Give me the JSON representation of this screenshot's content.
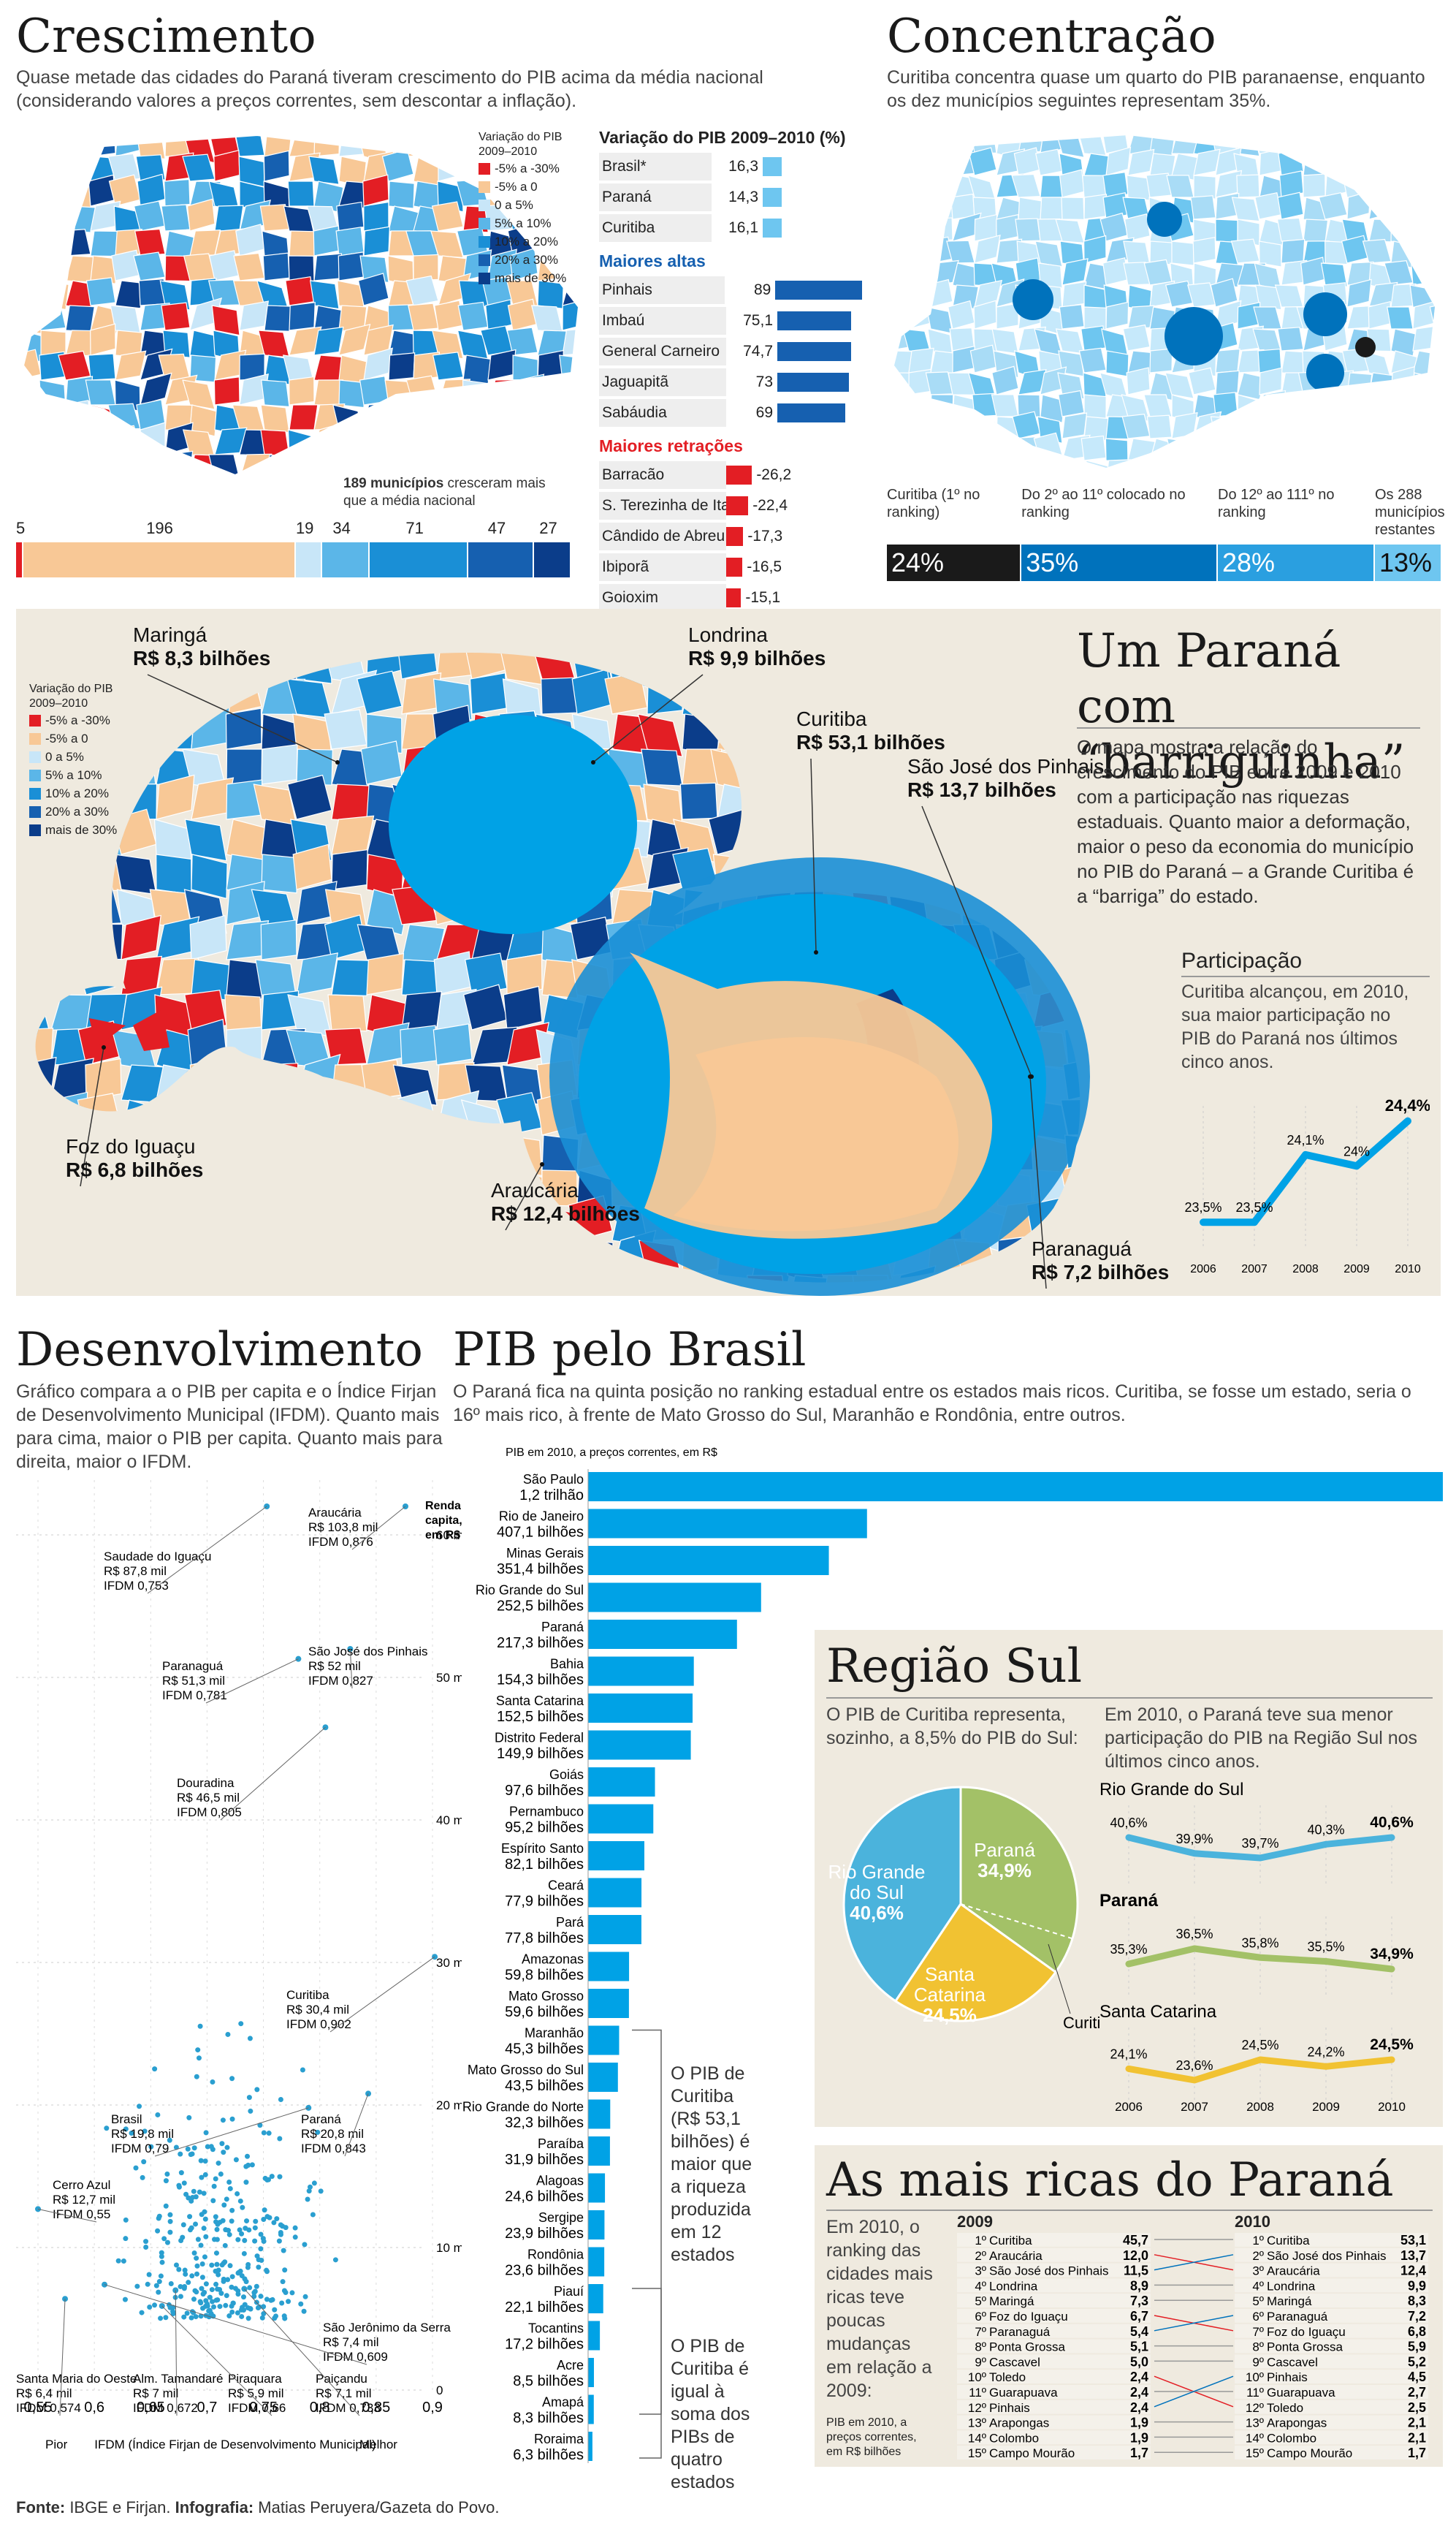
{
  "colors": {
    "neg_high": "#e31e24",
    "neg_low": "#f8c896",
    "pos_0_5": "#c8e6f8",
    "pos_5_10": "#5bb6e8",
    "pos_10_20": "#1a8fd6",
    "pos_20_30": "#1660b0",
    "pos_30": "#0b3d8a",
    "dark": "#1a1a1a",
    "mid_blue": "#0072bc",
    "light_blue": "#6ec6f0",
    "pale": "#c6e9fb",
    "beige": "#efeadf",
    "sul_rs": "#4bb3dc",
    "sul_pr": "#a3c167",
    "sul_sc": "#f1c232"
  },
  "crescimento": {
    "title": "Crescimento",
    "lead": "Quase metade das cidades do Paraná tiveram crescimento do PIB  acima da média nacional (considerando valores a preços correntes, sem descontar a inflação).",
    "legend_title": "Variação do PIB 2009–2010",
    "legend": [
      "-5% a -30%",
      "-5% a 0",
      "0 a 5%",
      "5% a 10%",
      "10% a 20%",
      "20% a 30%",
      "mais de 30%"
    ],
    "var_title": "Variação do PIB 2009–2010 (%)",
    "var_rows": [
      {
        "label": "Brasil*",
        "value": "16,3"
      },
      {
        "label": "Paraná",
        "value": "14,3"
      },
      {
        "label": "Curitiba",
        "value": "16,1"
      }
    ],
    "altas_title": "Maiores altas",
    "altas": [
      {
        "label": "Pinhais",
        "value": "89",
        "num": 89
      },
      {
        "label": "Imbaú",
        "value": "75,1",
        "num": 75.1
      },
      {
        "label": "General Carneiro",
        "value": "74,7",
        "num": 74.7
      },
      {
        "label": "Jaguapitã",
        "value": "73",
        "num": 73
      },
      {
        "label": "Sabáudia",
        "value": "69",
        "num": 69
      }
    ],
    "retr_title": "Maiores retrações",
    "retr": [
      {
        "label": "Barracão",
        "value": "-26,2",
        "num": 26.2
      },
      {
        "label": "S. Terezinha de Itaipu",
        "value": "-22,4",
        "num": 22.4
      },
      {
        "label": "Cândido de Abreu",
        "value": "-17,3",
        "num": 17.3
      },
      {
        "label": "Ibiporã",
        "value": "-16,5",
        "num": 16.5
      },
      {
        "label": "Goioxim",
        "value": "-15,1",
        "num": 15.1
      }
    ],
    "note_bold": "189 municípios",
    "note_rest": " cresceram mais que a média nacional",
    "counts": [
      {
        "n": "5",
        "v": 5
      },
      {
        "n": "196",
        "v": 196
      },
      {
        "n": "19",
        "v": 19
      },
      {
        "n": "34",
        "v": 34
      },
      {
        "n": "71",
        "v": 71
      },
      {
        "n": "47",
        "v": 47
      },
      {
        "n": "27",
        "v": 27
      }
    ]
  },
  "concentracao": {
    "title": "Concentração",
    "lead": "Curitiba concentra quase um quarto do PIB paranaense, enquanto os dez municípios seguintes representam 35%.",
    "segments": [
      {
        "label": "Curitiba (1º no ranking)",
        "value": "24%",
        "num": 24
      },
      {
        "label": "Do 2º ao 11º colocado no ranking",
        "value": "35%",
        "num": 35
      },
      {
        "label": "Do 12º ao 111º no ranking",
        "value": "28%",
        "num": 28
      },
      {
        "label": "Os 288 municípios restantes",
        "value": "13%",
        "num": 13
      }
    ]
  },
  "barriga": {
    "title": "Um Paraná com “barriguinha”",
    "text": "O mapa mostra a relação do crescimento do PIB entre 2009 e 2010 com a participação nas riquezas estaduais. Quanto maior a deformação, maior o peso da economia do município no PIB do Paraná – a Grande Curitiba é a “barriga” do estado.",
    "legend_title": "Variação do PIB 2009–2010",
    "cities": [
      {
        "name": "Maringá",
        "value": "R$ 8,3 bilhões"
      },
      {
        "name": "Londrina",
        "value": "R$ 9,9 bilhões"
      },
      {
        "name": "Curitiba",
        "value": "R$ 53,1 bilhões"
      },
      {
        "name": "São José dos Pinhais",
        "value": "R$ 13,7 bilhões"
      },
      {
        "name": "Foz do Iguaçu",
        "value": "R$ 6,8 bilhões"
      },
      {
        "name": "Araucária",
        "value": "R$ 12,4 bilhões"
      },
      {
        "name": "Paranaguá",
        "value": "R$ 7,2 bilhões"
      }
    ],
    "part_title": "Participação",
    "part_text": "Curitiba alcançou, em 2010, sua maior participação no PIB do Paraná nos últimos cinco anos."
  },
  "chart_data": [
    {
      "type": "line",
      "title": "Participação",
      "x": [
        "2006",
        "2007",
        "2008",
        "2009",
        "2010"
      ],
      "series": [
        {
          "values": [
            23.5,
            23.5,
            24.1,
            24,
            24.4
          ],
          "labels": [
            "23,5%",
            "23,5%",
            "24,1%",
            "24%",
            "24,4%"
          ]
        }
      ]
    },
    {
      "type": "scatter",
      "title": "Desenvolvimento",
      "xlabel": "IFDM (Índice Firjan de Desenvolvimento Municipal)",
      "ylabel": "Renda per capita, em R$",
      "x_ticks": [
        "0,55",
        "0,6",
        "0,65",
        "0,7",
        "0,75",
        "0,8",
        "0,85",
        "0,9"
      ],
      "y_ticks": [
        "0",
        "10 mil",
        "20 mil",
        "30 mil",
        "40 mil",
        "50 mil",
        "60 mil"
      ],
      "xlim": [
        0.54,
        0.92
      ],
      "ylim": [
        0,
        72
      ],
      "labeled": [
        {
          "name": "Araucária",
          "renda": "R$ 103,8 mil",
          "ifdm": "IFDM 0,876",
          "x": 0.876,
          "y": 103.8
        },
        {
          "name": "Saudade do Iguaçu",
          "renda": "R$ 87,8 mil",
          "ifdm": "IFDM 0,753",
          "x": 0.753,
          "y": 87.8
        },
        {
          "name": "São José dos Pinhais",
          "renda": "R$ 52 mil",
          "ifdm": "IFDM 0,827",
          "x": 0.827,
          "y": 52
        },
        {
          "name": "Paranaguá",
          "renda": "R$ 51,3 mil",
          "ifdm": "IFDM 0,781",
          "x": 0.781,
          "y": 51.3
        },
        {
          "name": "Douradina",
          "renda": "R$ 46,5 mil",
          "ifdm": "IFDM 0,805",
          "x": 0.805,
          "y": 46.5
        },
        {
          "name": "Curitiba",
          "renda": "R$ 30,4 mil",
          "ifdm": "IFDM 0,902",
          "x": 0.902,
          "y": 30.4
        },
        {
          "name": "Brasil",
          "renda": "R$ 19,8 mil",
          "ifdm": "IFDM 0,79",
          "x": 0.79,
          "y": 19.8
        },
        {
          "name": "Paraná",
          "renda": "R$ 20,8 mil",
          "ifdm": "IFDM 0,843",
          "x": 0.843,
          "y": 20.8
        },
        {
          "name": "Cerro Azul",
          "renda": "R$ 12,7 mil",
          "ifdm": "IFDM 0,55",
          "x": 0.55,
          "y": 12.7
        },
        {
          "name": "São Jerônimo da Serra",
          "renda": "R$ 7,4 mil",
          "ifdm": "IFDM 0,609",
          "x": 0.609,
          "y": 7.4
        },
        {
          "name": "Santa Maria do Oeste",
          "renda": "R$ 6,4 mil",
          "ifdm": "IFDM 0,574",
          "x": 0.574,
          "y": 6.4
        },
        {
          "name": "Alm. Tamandaré",
          "renda": "R$ 7 mil",
          "ifdm": "IFDM 0,672",
          "x": 0.672,
          "y": 7
        },
        {
          "name": "Piraquara",
          "renda": "R$ 5,9 mil",
          "ifdm": "IFDM 0,66",
          "x": 0.66,
          "y": 5.9
        },
        {
          "name": "Paiçandu",
          "renda": "R$ 7,1 mil",
          "ifdm": "IFDM 0,733",
          "x": 0.733,
          "y": 7.1
        }
      ]
    },
    {
      "type": "bar",
      "title": "PIB pelo Brasil",
      "subtitle": "PIB em  2010, a preços correntes, em R$",
      "categories": [
        "São Paulo",
        "Rio de Janeiro",
        "Minas Gerais",
        "Rio Grande do Sul",
        "Paraná",
        "Bahia",
        "Santa Catarina",
        "Distrito Federal",
        "Goiás",
        "Pernambuco",
        "Espírito Santo",
        "Ceará",
        "Pará",
        "Amazonas",
        "Mato Grosso",
        "Maranhão",
        "Mato Grosso do Sul",
        "Rio Grande do Norte",
        "Paraíba",
        "Alagoas",
        "Sergipe",
        "Rondônia",
        "Piauí",
        "Tocantins",
        "Acre",
        "Amapá",
        "Roraima"
      ],
      "labels": [
        "1,2 trilhão",
        "407,1 bilhões",
        "351,4 bilhões",
        "252,5 bilhões",
        "217,3 bilhões",
        "154,3 bilhões",
        "152,5 bilhões",
        "149,9 bilhões",
        "97,6 bilhões",
        "95,2 bilhões",
        "82,1 bilhões",
        "77,9 bilhões",
        "77,8 bilhões",
        "59,8 bilhões",
        "59,6 bilhões",
        "45,3 bilhões",
        "43,5 bilhões",
        "32,3 bilhões",
        "31,9 bilhões",
        "24,6 bilhões",
        "23,9 bilhões",
        "23,6 bilhões",
        "22,1 bilhões",
        "17,2 bilhões",
        "8,5 bilhões",
        "8,3 bilhões",
        "6,3 bilhões"
      ],
      "values": [
        1247.6,
        407.1,
        351.4,
        252.5,
        217.3,
        154.3,
        152.5,
        149.9,
        97.6,
        95.2,
        82.1,
        77.9,
        77.8,
        59.8,
        59.6,
        45.3,
        43.5,
        32.3,
        31.9,
        24.6,
        23.9,
        23.6,
        22.1,
        17.2,
        8.5,
        8.3,
        6.3
      ]
    },
    {
      "type": "pie",
      "title": "Região Sul",
      "slices": [
        {
          "name": "Rio Grande do Sul",
          "label": "40,6%",
          "value": 40.6
        },
        {
          "name": "Paraná",
          "label": "34,9%",
          "value": 34.9
        },
        {
          "name": "Santa Catarina",
          "label": "24,5%",
          "value": 24.5
        }
      ],
      "inner": {
        "name": "Curitiba",
        "label": "8,5%",
        "value": 8.5
      }
    },
    {
      "type": "line",
      "title": "Região Sul – participação",
      "x": [
        "2006",
        "2007",
        "2008",
        "2009",
        "2010"
      ],
      "series": [
        {
          "name": "Rio Grande do Sul",
          "values": [
            40.6,
            39.9,
            39.7,
            40.3,
            40.6
          ],
          "labels": [
            "40,6%",
            "39,9%",
            "39,7%",
            "40,3%",
            "40,6%"
          ]
        },
        {
          "name": "Paraná",
          "values": [
            35.3,
            36.5,
            35.8,
            35.5,
            34.9
          ],
          "labels": [
            "35,3%",
            "36,5%",
            "35,8%",
            "35,5%",
            "34,9%"
          ]
        },
        {
          "name": "Santa Catarina",
          "values": [
            24.1,
            23.6,
            24.5,
            24.2,
            24.5
          ],
          "labels": [
            "24,1%",
            "23,6%",
            "24,5%",
            "24,2%",
            "24,5%"
          ]
        }
      ]
    },
    {
      "type": "table",
      "title": "As mais ricas do Paraná",
      "y2009": [
        [
          "1º",
          "Curitiba",
          "45,7"
        ],
        [
          "2º",
          "Araucária",
          "12,0"
        ],
        [
          "3º",
          "São José dos Pinhais",
          "11,5"
        ],
        [
          "4º",
          "Londrina",
          "8,9"
        ],
        [
          "5º",
          "Maringá",
          "7,3"
        ],
        [
          "6º",
          "Foz do Iguaçu",
          "6,7"
        ],
        [
          "7º",
          "Paranaguá",
          "5,4"
        ],
        [
          "8º",
          "Ponta Grossa",
          "5,1"
        ],
        [
          "9º",
          "Cascavel",
          "5,0"
        ],
        [
          "10º",
          "Toledo",
          "2,4"
        ],
        [
          "11º",
          "Guarapuava",
          "2,4"
        ],
        [
          "12º",
          "Pinhais",
          "2,4"
        ],
        [
          "13º",
          "Arapongas",
          "1,9"
        ],
        [
          "14º",
          "Colombo",
          "1,9"
        ],
        [
          "15º",
          "Campo Mourão",
          "1,7"
        ]
      ],
      "y2010": [
        [
          "1º",
          "Curitiba",
          "53,1"
        ],
        [
          "2º",
          "São José dos Pinhais",
          "13,7"
        ],
        [
          "3º",
          "Araucária",
          "12,4"
        ],
        [
          "4º",
          "Londrina",
          "9,9"
        ],
        [
          "5º",
          "Maringá",
          "8,3"
        ],
        [
          "6º",
          "Paranaguá",
          "7,2"
        ],
        [
          "7º",
          "Foz do Iguaçu",
          "6,8"
        ],
        [
          "8º",
          "Ponta Grossa",
          "5,9"
        ],
        [
          "9º",
          "Cascavel",
          "5,2"
        ],
        [
          "10º",
          "Pinhais",
          "4,5"
        ],
        [
          "11º",
          "Guarapuava",
          "2,7"
        ],
        [
          "12º",
          "Toledo",
          "2,5"
        ],
        [
          "13º",
          "Arapongas",
          "2,1"
        ],
        [
          "14º",
          "Colombo",
          "2,1"
        ],
        [
          "15º",
          "Campo Mourão",
          "1,7"
        ]
      ]
    }
  ],
  "desenv": {
    "title": "Desenvolvimento",
    "lead": "Gráfico compara a o PIB per capita e o Índice Firjan de Desenvolvimento Municipal (IFDM). Quanto mais para cima, maior o PIB per capita. Quanto mais para direita, maior o IFDM.",
    "ylabel": "Renda per capita, em R$",
    "pior": "Pior",
    "melhor": "Melhor"
  },
  "brasil": {
    "title": "PIB pelo Brasil",
    "lead": "O Paraná fica na quinta posição no ranking estadual entre os estados mais ricos. Curitiba, se fosse um estado, seria o 16º mais rico, à frente de Mato Grosso do Sul, Maranhão e Rondônia, entre outros.",
    "note1": "O PIB de Curitiba (R$ 53,1 bilhões) é maior que a riqueza produzida em 12 estados",
    "note2": "O PIB de Curitiba é igual à soma dos PIBs de quatro estados"
  },
  "sul": {
    "title": "Região Sul",
    "lead1": "O PIB de Curitiba representa, sozinho, a 8,5% do PIB do Sul:",
    "lead2": "Em 2010, o Paraná teve sua menor participação do PIB na Região Sul nos últimos cinco anos."
  },
  "ricas": {
    "title": "As mais ricas do Paraná",
    "text": "Em 2010, o ranking das cidades mais ricas teve poucas mudanças em relação a 2009:",
    "note": "PIB em  2010, a preços correntes, em R$ bilhões",
    "h2009": "2009",
    "h2010": "2010"
  },
  "fonte_label": "Fonte:",
  "fonte_text": " IBGE e Firjan. ",
  "infografia_label": "Infografia:",
  "infografia_text": " Matias Peruyera/Gazeta do Povo."
}
